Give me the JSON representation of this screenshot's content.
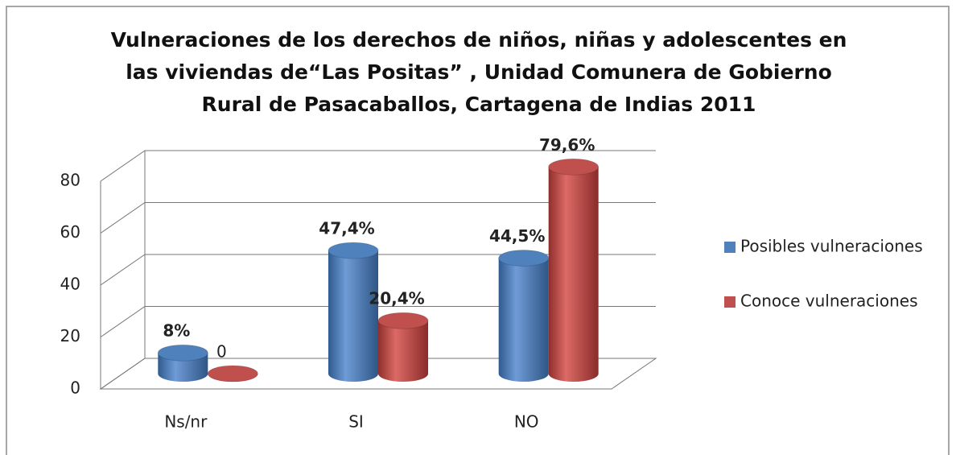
{
  "chart_data": {
    "type": "bar3d",
    "title": "Vulneraciones de los derechos de niños, niñas y adolescentes en las viviendas de“Las Positas” , Unidad Comunera de Gobierno  Rural de Pasacaballos, Cartagena de Indias 2011",
    "categories": [
      "Ns/nr",
      "SI",
      "NO"
    ],
    "series": [
      {
        "name": "Posibles vulneraciones",
        "color": "#4f81bd",
        "values": [
          8,
          47.4,
          44.5
        ],
        "value_labels": [
          "8%",
          "47,4%",
          "44,5%"
        ]
      },
      {
        "name": "Conoce vulneraciones",
        "color": "#c0504d",
        "values": [
          0,
          20.4,
          79.6
        ],
        "value_labels": [
          "0",
          "20,4%",
          "79,6%"
        ]
      }
    ],
    "ylim": [
      0,
      80
    ],
    "yticks": [
      0,
      20,
      40,
      60,
      80
    ],
    "grid": true,
    "legend": "right"
  }
}
